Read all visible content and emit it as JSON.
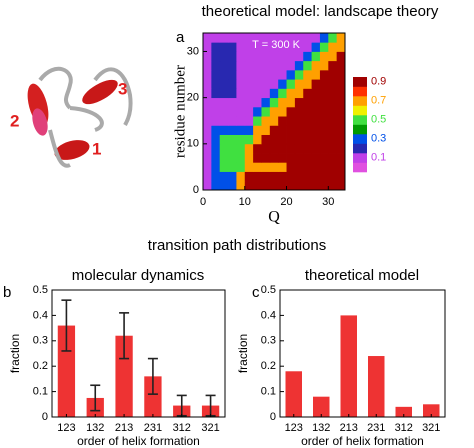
{
  "figure": {
    "section_title": "transition path distributions",
    "helix_labels": [
      "1",
      "2",
      "3"
    ]
  },
  "chart_data": [
    {
      "type": "heatmap",
      "panel": "a",
      "title": "theoretical model: landscape theory",
      "annotation": "T = 300 K",
      "xlabel": "Q",
      "ylabel": "residue number",
      "x": [
        1,
        3,
        5,
        7,
        9,
        11,
        13,
        15,
        17,
        19,
        21,
        23,
        25,
        27,
        29,
        31,
        33
      ],
      "y": [
        1,
        3,
        5,
        7,
        9,
        11,
        13,
        15,
        17,
        19,
        21,
        23,
        25,
        27,
        29,
        31,
        33
      ],
      "z": [
        [
          0.15,
          0.35,
          0.3,
          0.3,
          0.75,
          0.95,
          0.95,
          0.95,
          0.95,
          0.95,
          0.95,
          0.95,
          0.95,
          0.95,
          0.95,
          0.95,
          0.95
        ],
        [
          0.15,
          0.35,
          0.3,
          0.3,
          0.75,
          0.95,
          0.95,
          0.95,
          0.95,
          0.95,
          0.95,
          0.95,
          0.95,
          0.95,
          0.95,
          0.95,
          0.95
        ],
        [
          0.15,
          0.35,
          0.55,
          0.55,
          0.55,
          0.75,
          0.75,
          0.75,
          0.75,
          0.75,
          0.95,
          0.95,
          0.95,
          0.95,
          0.95,
          0.95,
          0.95
        ],
        [
          0.15,
          0.35,
          0.55,
          0.55,
          0.55,
          0.75,
          0.95,
          0.95,
          0.95,
          0.95,
          0.95,
          0.95,
          0.95,
          0.95,
          0.95,
          0.95,
          0.95
        ],
        [
          0.15,
          0.35,
          0.55,
          0.55,
          0.55,
          0.75,
          0.95,
          0.95,
          0.95,
          0.95,
          0.95,
          0.95,
          0.95,
          0.95,
          0.95,
          0.95,
          0.95
        ],
        [
          0.15,
          0.35,
          0.55,
          0.55,
          0.55,
          0.5,
          0.75,
          0.95,
          0.95,
          0.95,
          0.95,
          0.95,
          0.95,
          0.95,
          0.95,
          0.95,
          0.95
        ],
        [
          0.15,
          0.35,
          0.3,
          0.3,
          0.3,
          0.3,
          0.75,
          0.75,
          0.95,
          0.95,
          0.95,
          0.95,
          0.95,
          0.95,
          0.95,
          0.95,
          0.95
        ],
        [
          0.1,
          0.1,
          0.1,
          0.1,
          0.1,
          0.1,
          0.5,
          0.75,
          0.75,
          0.95,
          0.95,
          0.95,
          0.95,
          0.95,
          0.95,
          0.95,
          0.95
        ],
        [
          0.1,
          0.1,
          0.1,
          0.1,
          0.1,
          0.1,
          0.3,
          0.5,
          0.75,
          0.75,
          0.95,
          0.95,
          0.95,
          0.95,
          0.95,
          0.95,
          0.95
        ],
        [
          0.1,
          0.1,
          0.1,
          0.1,
          0.1,
          0.1,
          0.1,
          0.3,
          0.5,
          0.75,
          0.75,
          0.95,
          0.95,
          0.95,
          0.95,
          0.95,
          0.95
        ],
        [
          0.1,
          0.25,
          0.25,
          0.25,
          0.1,
          0.1,
          0.1,
          0.1,
          0.3,
          0.5,
          0.75,
          0.75,
          0.95,
          0.95,
          0.95,
          0.95,
          0.95
        ],
        [
          0.1,
          0.25,
          0.25,
          0.25,
          0.1,
          0.1,
          0.1,
          0.1,
          0.1,
          0.3,
          0.5,
          0.75,
          0.75,
          0.95,
          0.95,
          0.95,
          0.95
        ],
        [
          0.1,
          0.25,
          0.25,
          0.25,
          0.1,
          0.1,
          0.1,
          0.1,
          0.1,
          0.1,
          0.3,
          0.5,
          0.75,
          0.75,
          0.95,
          0.95,
          0.95
        ],
        [
          0.1,
          0.25,
          0.25,
          0.25,
          0.1,
          0.1,
          0.1,
          0.1,
          0.1,
          0.1,
          0.1,
          0.3,
          0.5,
          0.75,
          0.75,
          0.95,
          0.95
        ],
        [
          0.1,
          0.25,
          0.25,
          0.25,
          0.1,
          0.1,
          0.1,
          0.1,
          0.1,
          0.1,
          0.1,
          0.1,
          0.3,
          0.5,
          0.75,
          0.75,
          0.95
        ],
        [
          0.1,
          0.25,
          0.25,
          0.25,
          0.1,
          0.1,
          0.1,
          0.1,
          0.1,
          0.1,
          0.1,
          0.1,
          0.1,
          0.3,
          0.5,
          0.75,
          0.75
        ],
        [
          0.1,
          0.1,
          0.1,
          0.1,
          0.1,
          0.1,
          0.1,
          0.1,
          0.1,
          0.1,
          0.1,
          0.1,
          0.1,
          0.1,
          0.3,
          0.5,
          0.75
        ]
      ],
      "xlim": [
        0,
        34
      ],
      "ylim": [
        0,
        34
      ],
      "xticks": [
        0,
        10,
        20,
        30
      ],
      "yticks": [
        0,
        10,
        20,
        30
      ],
      "zlim": [
        0,
        1
      ],
      "colorbar_ticks": [
        0.9,
        0.7,
        0.5,
        0.3,
        0.1
      ],
      "colors": [
        "#e050e0",
        "#c040e8",
        "#2828b0",
        "#0050e8",
        "#009a00",
        "#40e040",
        "#f0f000",
        "#ffa000",
        "#ff3000",
        "#a00000"
      ]
    },
    {
      "type": "bar",
      "panel": "b",
      "title": "molecular dynamics",
      "xlabel": "order of helix formation",
      "ylabel": "fraction",
      "categories": [
        "123",
        "132",
        "213",
        "231",
        "312",
        "321"
      ],
      "values": [
        0.36,
        0.075,
        0.32,
        0.16,
        0.045,
        0.045
      ],
      "errors": [
        0.1,
        0.05,
        0.09,
        0.07,
        0.04,
        0.04
      ],
      "color": "#ee3333",
      "ylim": [
        0,
        0.5
      ],
      "yticks": [
        0,
        0.1,
        0.2,
        0.3,
        0.4,
        0.5
      ]
    },
    {
      "type": "bar",
      "panel": "c",
      "title": "theoretical model",
      "xlabel": "order of helix formation",
      "ylabel": "fraction",
      "categories": [
        "123",
        "132",
        "213",
        "231",
        "312",
        "321"
      ],
      "values": [
        0.18,
        0.08,
        0.4,
        0.24,
        0.04,
        0.05
      ],
      "color": "#ee3333",
      "ylim": [
        0,
        0.5
      ],
      "yticks": [
        0,
        0.1,
        0.2,
        0.3,
        0.4,
        0.5
      ]
    }
  ]
}
